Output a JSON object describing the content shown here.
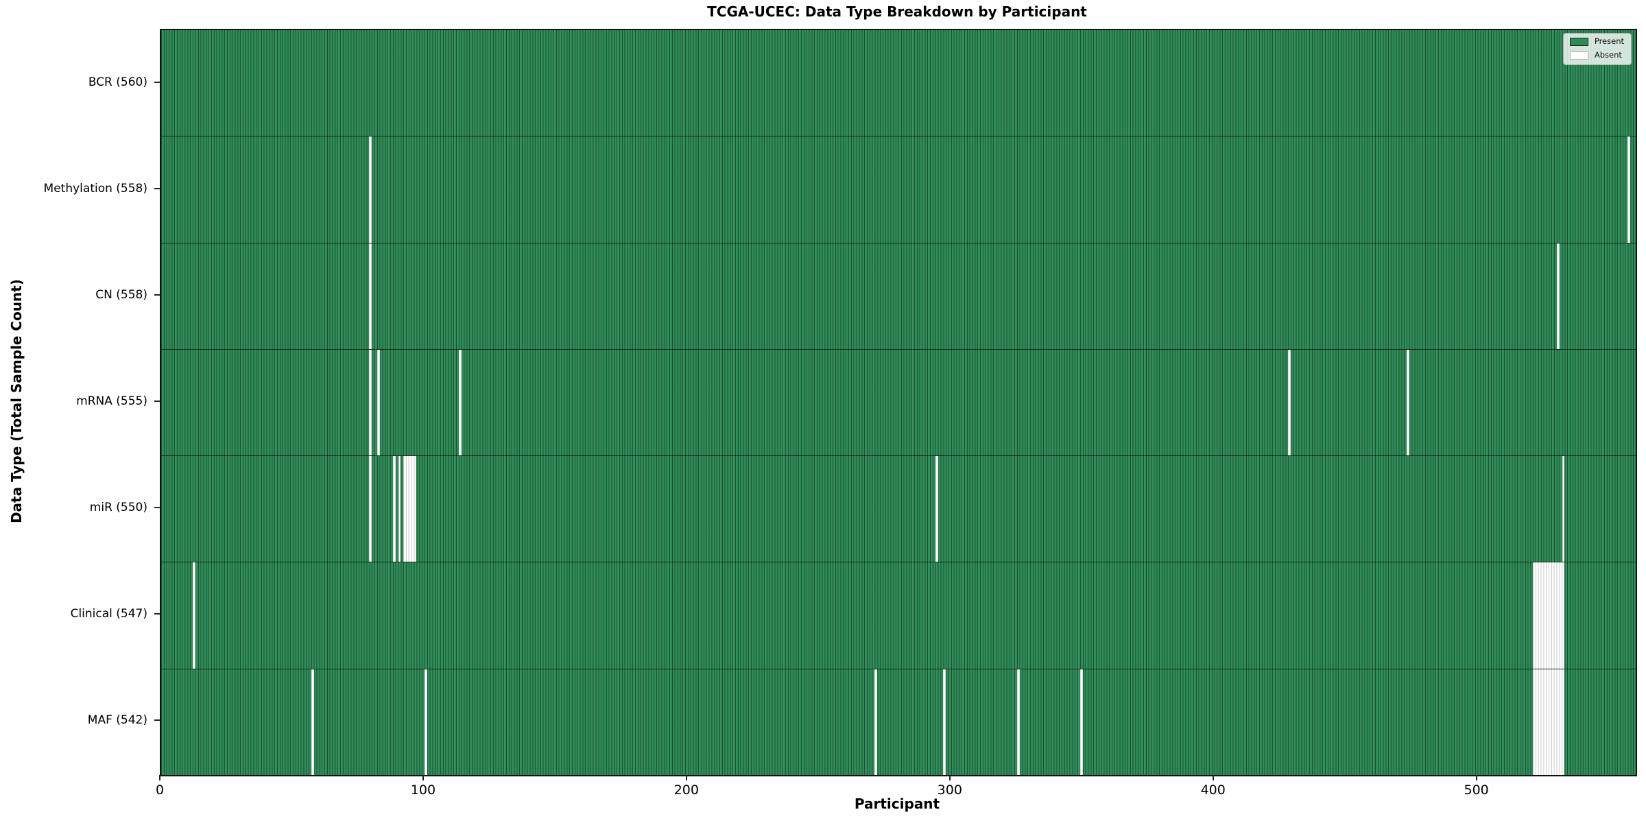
{
  "title": "TCGA-UCEC: Data Type Breakdown by Participant",
  "xlabel": "Participant",
  "ylabel": "Data Type (Total Sample Count)",
  "legend": {
    "position": "upper right",
    "present_label": "Present",
    "absent_label": "Absent"
  },
  "colors": {
    "present": "#2e8b57",
    "absent": "#ffffff",
    "bar_edge": "#0a2314",
    "absent_edge": "#c8c8c8"
  },
  "chart_data": {
    "type": "heatmap",
    "title": "TCGA-UCEC: Data Type Breakdown by Participant",
    "xlabel": "Participant",
    "ylabel": "Data Type (Total Sample Count)",
    "grid": false,
    "legend_position": "upper right",
    "n_participants": 560,
    "x_range": [
      0,
      560
    ],
    "x_ticks": [
      0,
      100,
      200,
      300,
      400,
      500
    ],
    "rows": [
      {
        "name": "bcr",
        "label": "BCR (560)",
        "data_type": "BCR",
        "present_count": 560,
        "absent_participants": []
      },
      {
        "name": "methylation",
        "label": "Methylation (558)",
        "data_type": "Methylation",
        "present_count": 558,
        "absent_participants": [
          79,
          557
        ]
      },
      {
        "name": "cn",
        "label": "CN (558)",
        "data_type": "CN",
        "present_count": 558,
        "absent_participants": [
          79,
          530
        ]
      },
      {
        "name": "mrna",
        "label": "mRNA (555)",
        "data_type": "mRNA",
        "present_count": 555,
        "absent_participants": [
          79,
          82,
          113,
          428,
          473
        ]
      },
      {
        "name": "mir",
        "label": "miR (550)",
        "data_type": "miR",
        "present_count": 550,
        "absent_participants": [
          79,
          88,
          90,
          92,
          93,
          94,
          95,
          96,
          294,
          532
        ]
      },
      {
        "name": "clinical",
        "label": "Clinical (547)",
        "data_type": "Clinical",
        "present_count": 547,
        "absent_participants": [
          12,
          521,
          522,
          523,
          524,
          525,
          526,
          527,
          528,
          529,
          530,
          531,
          532
        ]
      },
      {
        "name": "maf",
        "label": "MAF (542)",
        "data_type": "MAF",
        "present_count": 542,
        "absent_participants": [
          57,
          100,
          271,
          297,
          325,
          349,
          521,
          522,
          523,
          524,
          525,
          526,
          527,
          528,
          529,
          530,
          531,
          532
        ]
      }
    ]
  }
}
